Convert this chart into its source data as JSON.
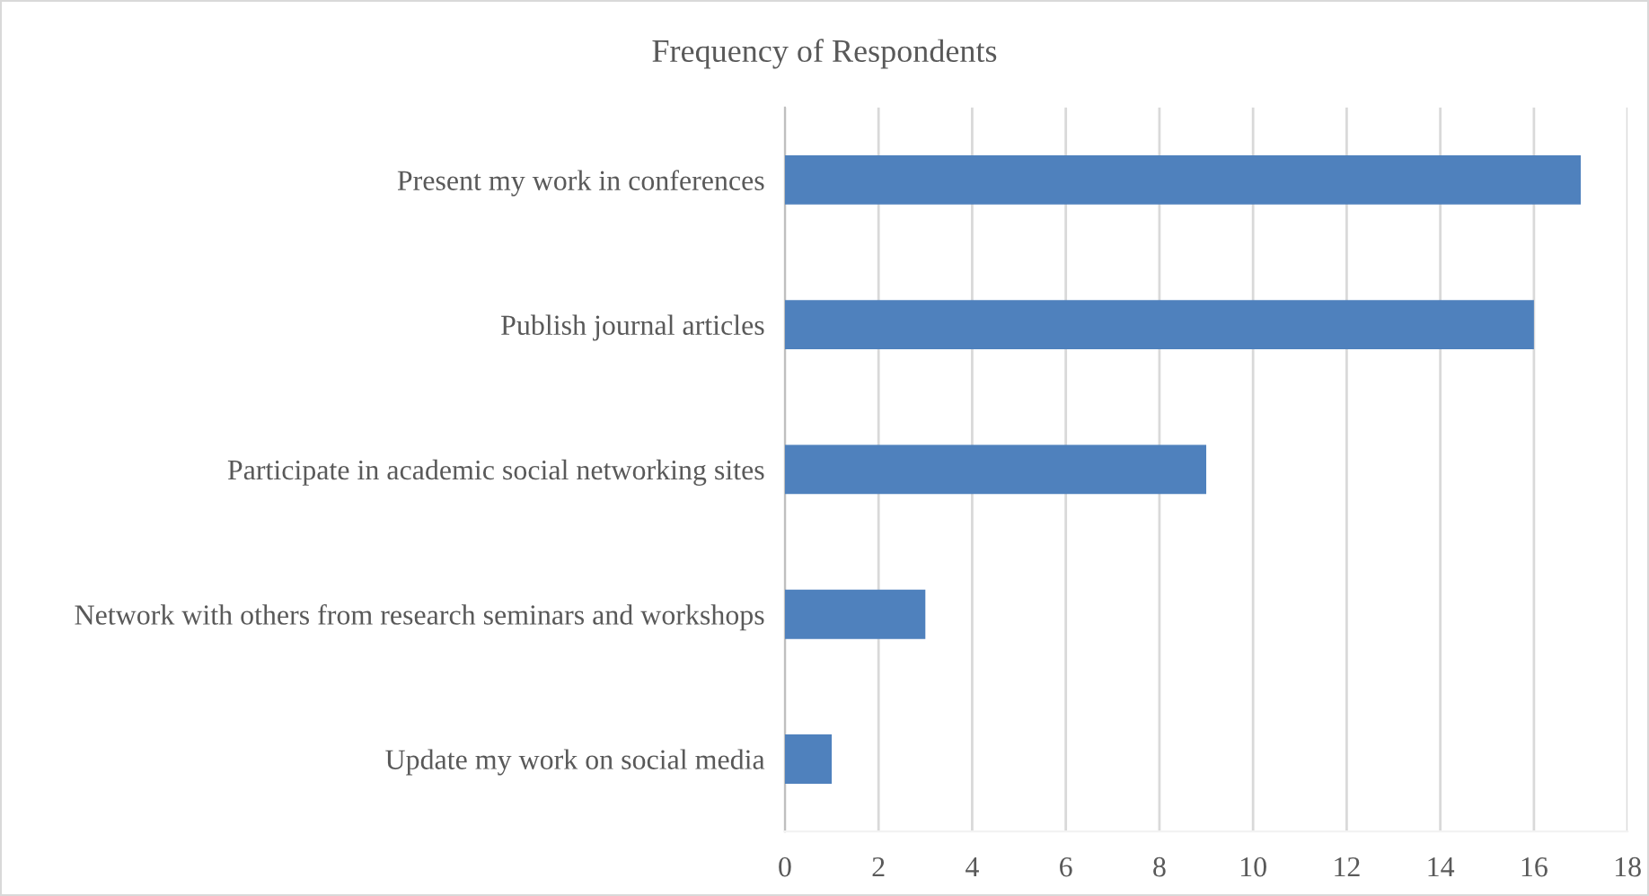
{
  "chart_data": {
    "type": "bar",
    "orientation": "horizontal",
    "title": "Frequency of Respondents",
    "categories": [
      "Present my work in conferences",
      "Publish journal articles",
      "Participate in academic social networking sites",
      "Network with others from research seminars and workshops",
      "Update my work on social media"
    ],
    "values": [
      17,
      16,
      9,
      3,
      1
    ],
    "color": "#4f81bd",
    "xlim": [
      0,
      18
    ],
    "xticks": [
      0,
      2,
      4,
      6,
      8,
      10,
      12,
      14,
      16,
      18
    ],
    "grid": "x"
  }
}
